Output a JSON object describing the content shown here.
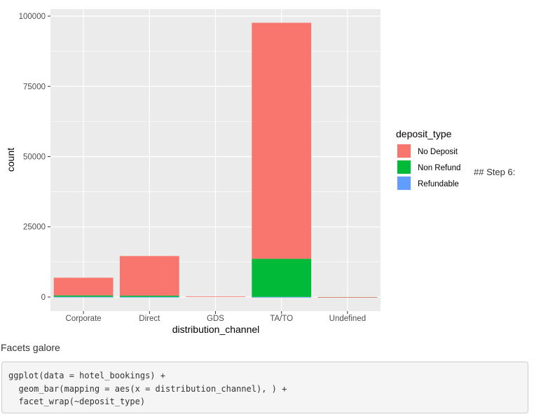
{
  "chart_data": {
    "type": "bar",
    "stacked": true,
    "xlabel": "distribution_channel",
    "ylabel": "count",
    "categories": [
      "Corporate",
      "Direct",
      "GDS",
      "TA/TO",
      "Undefined"
    ],
    "series": [
      {
        "name": "No Deposit",
        "color": "#F8766D",
        "values": [
          6300,
          14100,
          193,
          84000,
          1
        ]
      },
      {
        "name": "Non Refund",
        "color": "#00BA38",
        "values": [
          500,
          450,
          0,
          13600,
          4
        ]
      },
      {
        "name": "Refundable",
        "color": "#619CFF",
        "values": [
          80,
          50,
          0,
          30,
          0
        ]
      }
    ],
    "ylim": [
      -5000,
      102500
    ],
    "yticks": [
      0,
      25000,
      50000,
      75000,
      100000
    ],
    "ytick_labels": [
      "0",
      "25000",
      "50000",
      "75000",
      "100000"
    ],
    "legend": {
      "title": "deposit_type",
      "position": "right"
    },
    "grid": true,
    "panel_background": "#EBEBEB"
  },
  "side_text": "## Step 6:",
  "prose": "Facets galore",
  "code": [
    "ggplot(data = hotel_bookings) +",
    "  geom_bar(mapping = aes(x = distribution_channel), ) +",
    "  facet_wrap(~deposit_type)"
  ]
}
